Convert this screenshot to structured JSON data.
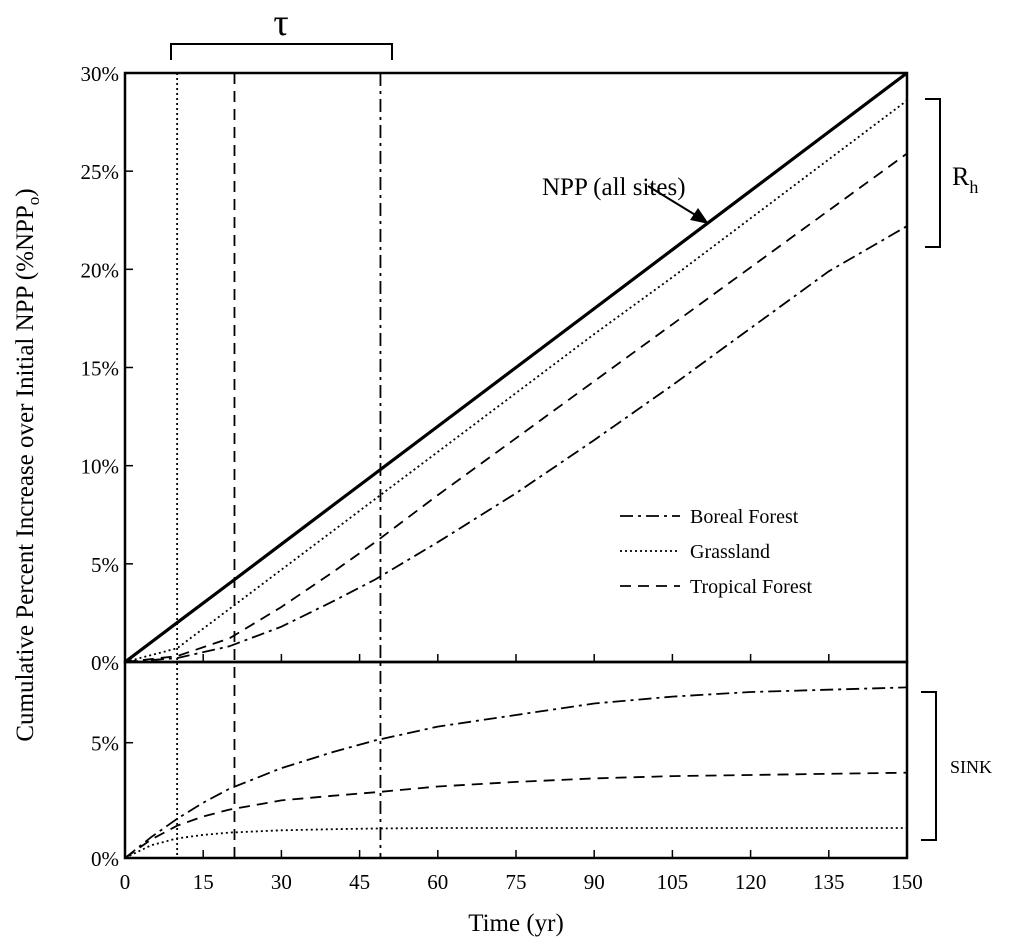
{
  "chart_data": {
    "type": "line",
    "xlabel": "Time (yr)",
    "ylabel": "Cumulative Percent Increase over Initial NPP (%NPP",
    "ylabel_subscript": "o",
    "ylabel_suffix": ")",
    "xlim": [
      0,
      150
    ],
    "x_ticks": [
      "0",
      "15",
      "30",
      "45",
      "60",
      "75",
      "90",
      "105",
      "120",
      "135",
      "150"
    ],
    "panels": [
      {
        "id": "top",
        "ylim": [
          0,
          30
        ],
        "y_ticks": [
          "0%",
          "5%",
          "10%",
          "15%",
          "20%",
          "25%",
          "30%"
        ],
        "x": [
          0,
          10,
          20,
          30,
          40,
          48,
          60,
          75,
          90,
          105,
          120,
          135,
          150
        ],
        "series": [
          {
            "key": "npp",
            "style": "solid",
            "values": [
              0,
              2.0,
              4.0,
              6.0,
              8.0,
              9.6,
              12.0,
              15.0,
              18.0,
              21.0,
              24.0,
              27.0,
              30.0
            ]
          },
          {
            "key": "grassland",
            "style": "dotted",
            "values": [
              0,
              0.7,
              2.7,
              4.7,
              6.7,
              8.3,
              10.7,
              13.7,
              16.7,
              19.6,
              22.6,
              25.6,
              28.6
            ]
          },
          {
            "key": "tropical",
            "style": "dashed",
            "values": [
              0,
              0.3,
              1.2,
              2.8,
              4.6,
              6.1,
              8.5,
              11.4,
              14.3,
              17.2,
              20.1,
              23.0,
              25.9
            ]
          },
          {
            "key": "boreal",
            "style": "dashdot",
            "values": [
              0,
              0.2,
              0.8,
              1.8,
              3.1,
              4.2,
              6.1,
              8.6,
              11.3,
              14.1,
              17.0,
              19.9,
              22.2
            ]
          }
        ]
      },
      {
        "id": "bottom",
        "ylim": [
          0,
          8.5
        ],
        "y_ticks": [
          "0%",
          "5%"
        ],
        "y_tick_values": [
          0,
          5
        ],
        "x": [
          0,
          5,
          10,
          15,
          20,
          30,
          40,
          48,
          60,
          75,
          90,
          105,
          120,
          135,
          150
        ],
        "series": [
          {
            "key": "boreal",
            "style": "dashdot",
            "values": [
              0,
              0.9,
              1.7,
              2.4,
              3.0,
              3.9,
              4.6,
              5.1,
              5.7,
              6.2,
              6.7,
              7.0,
              7.2,
              7.3,
              7.4
            ]
          },
          {
            "key": "tropical",
            "style": "dashed",
            "values": [
              0,
              0.8,
              1.4,
              1.8,
              2.1,
              2.5,
              2.7,
              2.85,
              3.1,
              3.3,
              3.45,
              3.55,
              3.6,
              3.65,
              3.7
            ]
          },
          {
            "key": "grassland",
            "style": "dotted",
            "values": [
              0,
              0.55,
              0.85,
              1.0,
              1.1,
              1.2,
              1.25,
              1.28,
              1.3,
              1.3,
              1.3,
              1.3,
              1.3,
              1.3,
              1.3
            ]
          }
        ]
      }
    ],
    "tau_lines": [
      {
        "x": 10,
        "style": "dotted"
      },
      {
        "x": 21,
        "style": "dashed"
      },
      {
        "x": 49,
        "style": "dashdot"
      }
    ],
    "legend": {
      "placement": "lower-right of top panel",
      "entries": [
        {
          "style": "dashdot",
          "label": "Boreal Forest"
        },
        {
          "style": "dotted",
          "label": "Grassland"
        },
        {
          "style": "dashed",
          "label": "Tropical Forest"
        }
      ]
    },
    "annotations": {
      "npp_label": "NPP (all sites)",
      "tau": "τ",
      "rh": "R",
      "rh_subscript": "h",
      "sink": "SINK"
    }
  }
}
